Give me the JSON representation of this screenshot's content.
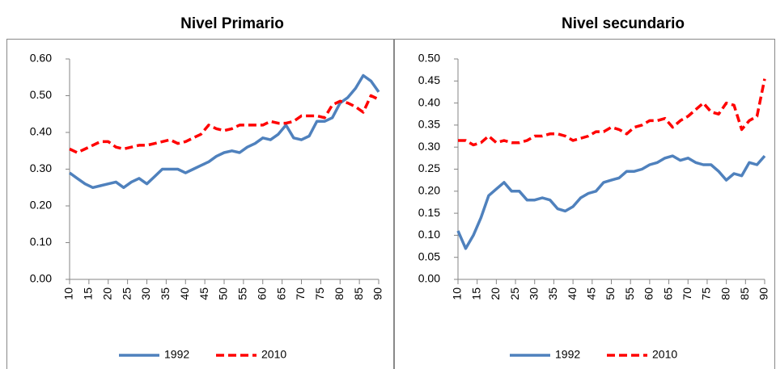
{
  "chart_data": [
    {
      "type": "line",
      "title": "Nivel Primario",
      "x": [
        10,
        12,
        14,
        16,
        18,
        20,
        22,
        24,
        26,
        28,
        30,
        32,
        34,
        36,
        38,
        40,
        42,
        44,
        46,
        48,
        50,
        52,
        54,
        56,
        58,
        60,
        62,
        64,
        66,
        68,
        70,
        72,
        74,
        76,
        78,
        80,
        82,
        84,
        86,
        88,
        90
      ],
      "series": [
        {
          "name": "1992",
          "color": "#4f81bd",
          "line_style": "solid",
          "values": [
            0.29,
            0.275,
            0.26,
            0.25,
            0.255,
            0.26,
            0.265,
            0.25,
            0.265,
            0.275,
            0.26,
            0.28,
            0.3,
            0.3,
            0.3,
            0.29,
            0.3,
            0.31,
            0.32,
            0.335,
            0.345,
            0.35,
            0.345,
            0.36,
            0.37,
            0.385,
            0.38,
            0.395,
            0.42,
            0.385,
            0.38,
            0.39,
            0.43,
            0.43,
            0.44,
            0.48,
            0.495,
            0.52,
            0.555,
            0.54,
            0.51
          ]
        },
        {
          "name": "2010",
          "color": "#ff0000",
          "line_style": "dashed",
          "values": [
            0.355,
            0.345,
            0.355,
            0.365,
            0.375,
            0.375,
            0.36,
            0.355,
            0.36,
            0.365,
            0.365,
            0.37,
            0.375,
            0.38,
            0.37,
            0.375,
            0.385,
            0.395,
            0.42,
            0.41,
            0.405,
            0.41,
            0.42,
            0.42,
            0.42,
            0.42,
            0.43,
            0.425,
            0.425,
            0.43,
            0.445,
            0.445,
            0.445,
            0.44,
            0.475,
            0.485,
            0.48,
            0.47,
            0.455,
            0.5,
            0.49
          ]
        }
      ],
      "xlim": [
        10,
        90
      ],
      "xticks": [
        10,
        15,
        20,
        25,
        30,
        35,
        40,
        45,
        50,
        55,
        60,
        65,
        70,
        75,
        80,
        85,
        90
      ],
      "ylim": [
        0,
        0.6
      ],
      "yticks": [
        {
          "value": 0,
          "label": "0.00"
        },
        {
          "value": 0.1,
          "label": "0.10"
        },
        {
          "value": 0.2,
          "label": "0.20"
        },
        {
          "value": 0.3,
          "label": "0.30"
        },
        {
          "value": 0.4,
          "label": "0.40"
        },
        {
          "value": 0.5,
          "label": "0.50"
        },
        {
          "value": 0.6,
          "label": "0.60"
        }
      ],
      "grid": false,
      "legend": "bottom"
    },
    {
      "type": "line",
      "title": "Nivel secundario",
      "x": [
        10,
        12,
        14,
        16,
        18,
        20,
        22,
        24,
        26,
        28,
        30,
        32,
        34,
        36,
        38,
        40,
        42,
        44,
        46,
        48,
        50,
        52,
        54,
        56,
        58,
        60,
        62,
        64,
        66,
        68,
        70,
        72,
        74,
        76,
        78,
        80,
        82,
        84,
        86,
        88,
        90
      ],
      "series": [
        {
          "name": "1992",
          "color": "#4f81bd",
          "line_style": "solid",
          "values": [
            0.11,
            0.07,
            0.1,
            0.14,
            0.19,
            0.205,
            0.22,
            0.2,
            0.2,
            0.18,
            0.18,
            0.185,
            0.18,
            0.16,
            0.155,
            0.165,
            0.185,
            0.195,
            0.2,
            0.22,
            0.225,
            0.23,
            0.245,
            0.245,
            0.25,
            0.26,
            0.265,
            0.275,
            0.28,
            0.27,
            0.275,
            0.265,
            0.26,
            0.26,
            0.245,
            0.225,
            0.24,
            0.235,
            0.265,
            0.26,
            0.28
          ]
        },
        {
          "name": "2010",
          "color": "#ff0000",
          "line_style": "dashed",
          "values": [
            0.315,
            0.315,
            0.305,
            0.31,
            0.325,
            0.31,
            0.315,
            0.31,
            0.31,
            0.315,
            0.325,
            0.325,
            0.33,
            0.33,
            0.325,
            0.315,
            0.32,
            0.325,
            0.335,
            0.335,
            0.345,
            0.34,
            0.33,
            0.345,
            0.35,
            0.36,
            0.36,
            0.365,
            0.345,
            0.36,
            0.37,
            0.385,
            0.4,
            0.38,
            0.375,
            0.4,
            0.395,
            0.34,
            0.36,
            0.37,
            0.455
          ]
        }
      ],
      "xlim": [
        10,
        90
      ],
      "xticks": [
        10,
        15,
        20,
        25,
        30,
        35,
        40,
        45,
        50,
        55,
        60,
        65,
        70,
        75,
        80,
        85,
        90
      ],
      "ylim": [
        0,
        0.5
      ],
      "yticks": [
        {
          "value": 0,
          "label": "0.00"
        },
        {
          "value": 0.05,
          "label": "0.05"
        },
        {
          "value": 0.1,
          "label": "0.10"
        },
        {
          "value": 0.15,
          "label": "0.15"
        },
        {
          "value": 0.2,
          "label": "0.20"
        },
        {
          "value": 0.25,
          "label": "0.25"
        },
        {
          "value": 0.3,
          "label": "0.30"
        },
        {
          "value": 0.35,
          "label": "0.35"
        },
        {
          "value": 0.4,
          "label": "0.40"
        },
        {
          "value": 0.45,
          "label": "0.45"
        },
        {
          "value": 0.5,
          "label": "0.50"
        }
      ],
      "grid": false,
      "legend": "bottom"
    }
  ]
}
